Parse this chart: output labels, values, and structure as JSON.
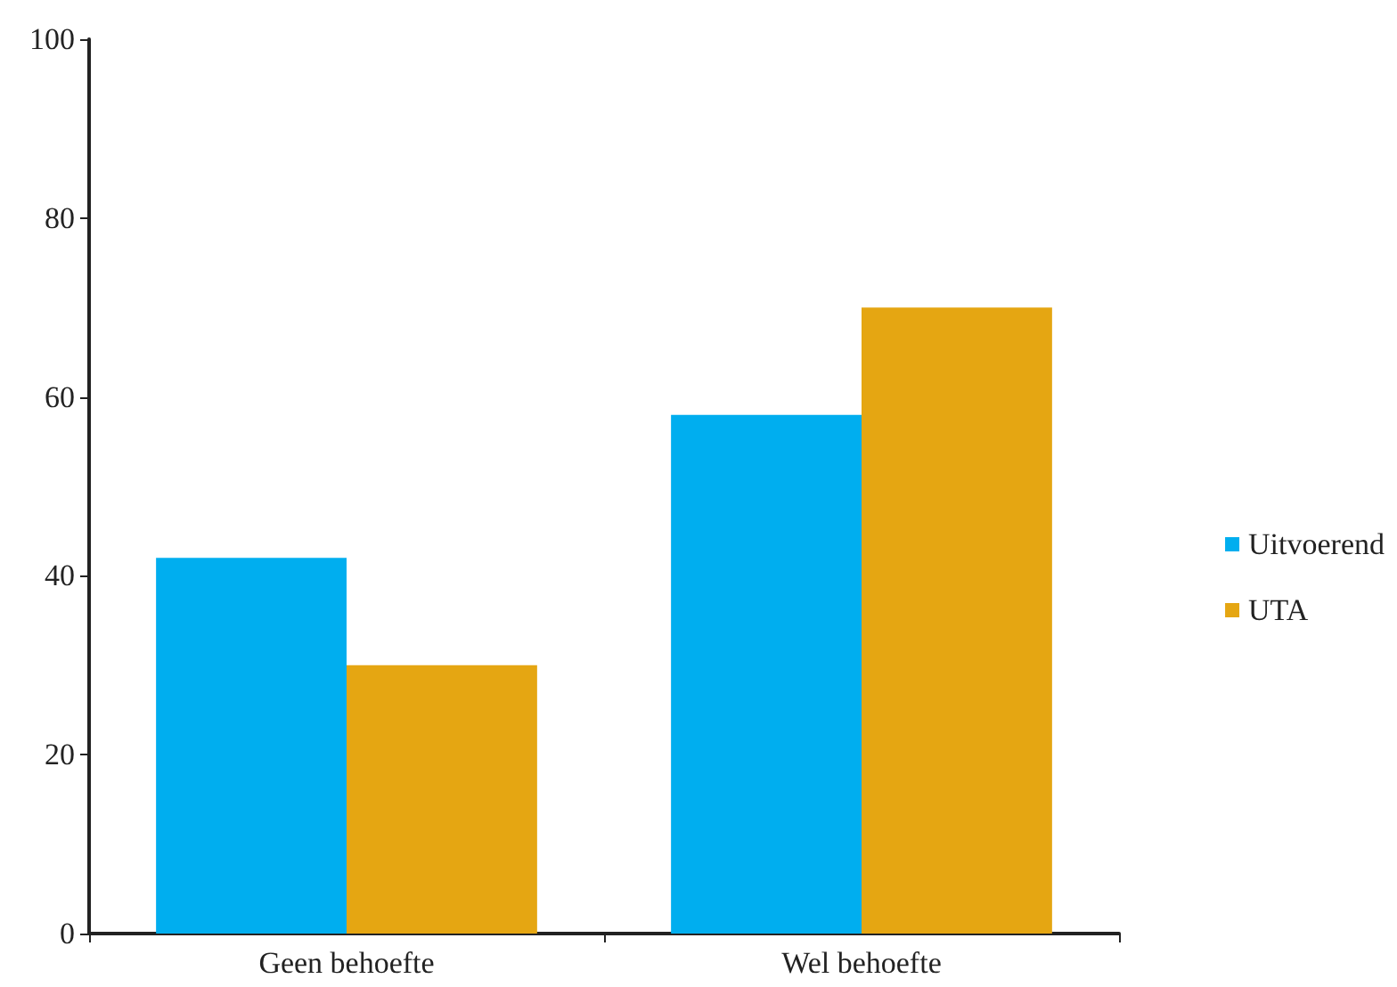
{
  "chart_data": {
    "type": "bar",
    "categories": [
      "Geen behoefte",
      "Wel behoefte"
    ],
    "series": [
      {
        "name": "Uitvoerend",
        "color": "#00aeef",
        "values": [
          42,
          58
        ]
      },
      {
        "name": "UTA",
        "color": "#e5a612",
        "values": [
          30,
          70
        ]
      }
    ],
    "ylim": [
      0,
      100
    ],
    "yticks": [
      0,
      20,
      40,
      60,
      80,
      100
    ],
    "grid": false,
    "legend": "right"
  }
}
